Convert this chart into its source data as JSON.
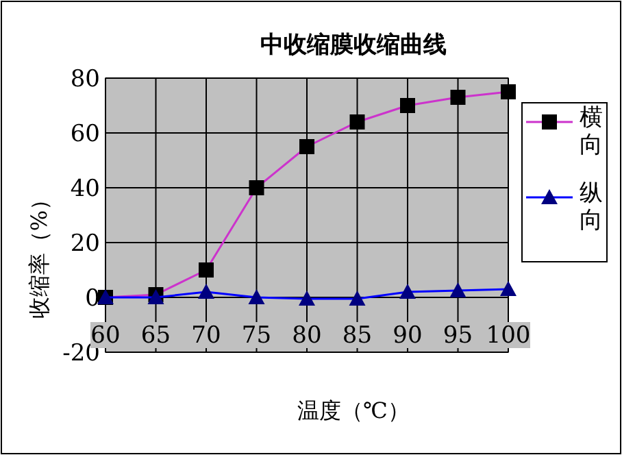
{
  "chart_data": {
    "type": "line",
    "title": "中收缩膜收缩曲线",
    "xlabel": "温度（℃）",
    "ylabel": "收缩率（%）",
    "x": [
      60,
      65,
      70,
      75,
      80,
      85,
      90,
      95,
      100
    ],
    "series": [
      {
        "name": "横向",
        "color": "#cc33cc",
        "marker": "square",
        "values": [
          0,
          1,
          10,
          40,
          55,
          64,
          70,
          73,
          75
        ]
      },
      {
        "name": "纵向",
        "color": "#0000ff",
        "marker": "triangle",
        "values": [
          0,
          0,
          2,
          0,
          -0.5,
          -0.5,
          2,
          2.5,
          3
        ]
      }
    ],
    "xlim": [
      60,
      100
    ],
    "xticks": [
      60,
      65,
      70,
      75,
      80,
      85,
      90,
      95,
      100
    ],
    "ylim": [
      -20,
      80
    ],
    "yticks": [
      -20,
      0,
      20,
      40,
      60,
      80
    ],
    "grid": true,
    "legend": "right"
  }
}
